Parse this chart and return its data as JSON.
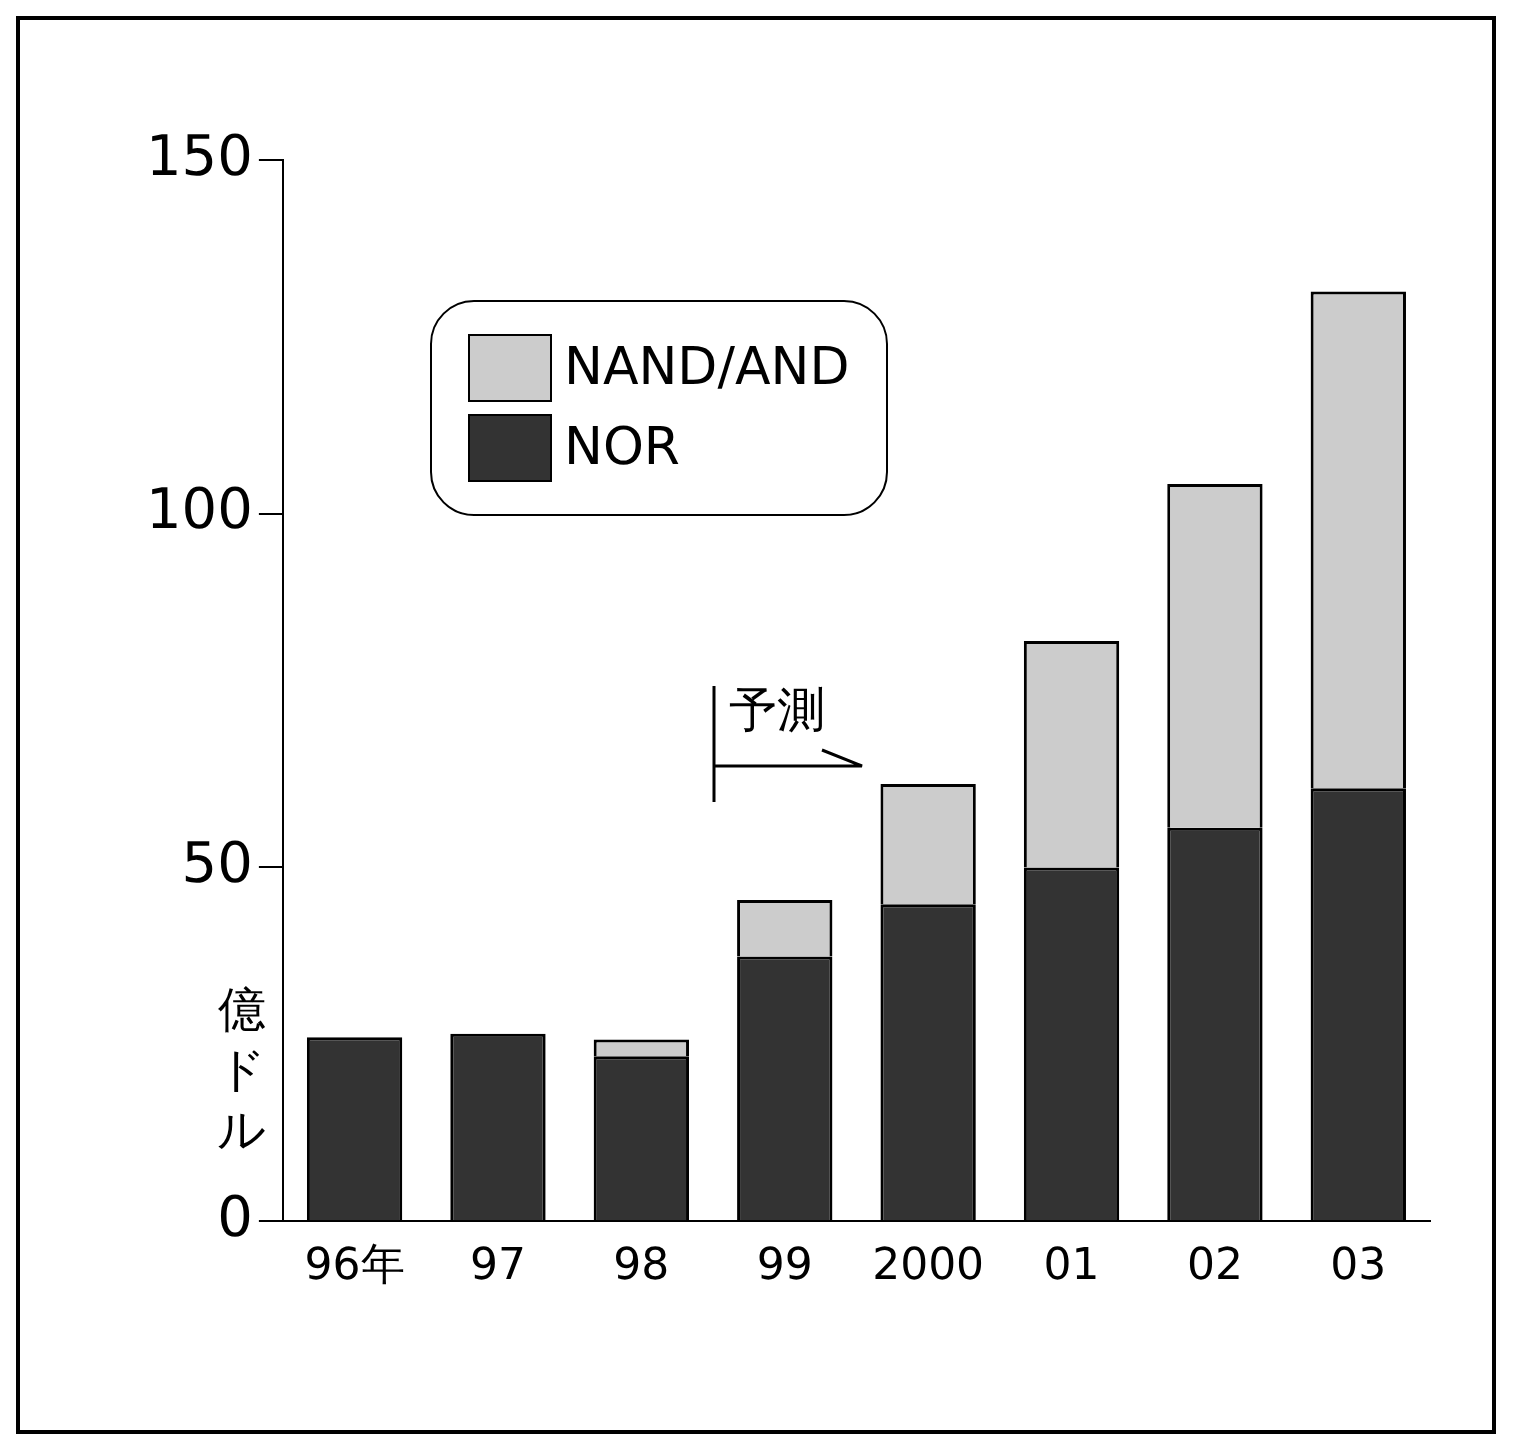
{
  "chart_data": {
    "type": "bar",
    "stacked": true,
    "ylabel": "億ドル",
    "categories": [
      "96年",
      "97",
      "98",
      "99",
      "2000",
      "01",
      "02",
      "03"
    ],
    "series": [
      {
        "name": "NOR",
        "color": "#333333",
        "values": [
          26,
          26.5,
          23.3,
          37.4,
          44.8,
          50,
          55.6,
          61.2
        ]
      },
      {
        "name": "NAND/AND",
        "color": "#cccccc",
        "values": [
          0,
          0,
          2.4,
          8,
          17,
          32,
          48.6,
          70.2
        ]
      }
    ],
    "ylim": [
      0,
      150
    ],
    "yticks": [
      0,
      50,
      100,
      150
    ],
    "grid": false,
    "legend": "top left",
    "annotations": [
      "予測"
    ]
  }
}
